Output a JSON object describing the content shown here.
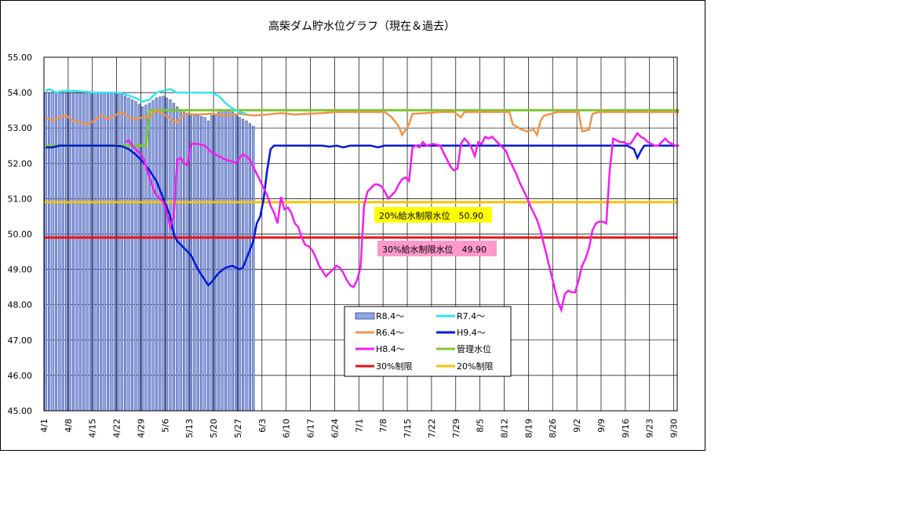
{
  "chart_data": {
    "type": "line",
    "title": "高柴ダム貯水位グラフ（現在＆過去）",
    "ylim": [
      45.0,
      55.0
    ],
    "y_ticks": [
      "45.00",
      "46.00",
      "47.00",
      "48.00",
      "49.00",
      "50.00",
      "51.00",
      "52.00",
      "53.00",
      "54.00",
      "55.00"
    ],
    "x_ticks": [
      "4/1",
      "4/8",
      "4/15",
      "4/22",
      "4/29",
      "5/6",
      "5/13",
      "5/20",
      "5/27",
      "6/3",
      "6/10",
      "6/17",
      "6/24",
      "7/1",
      "7/8",
      "7/15",
      "7/22",
      "7/29",
      "8/5",
      "8/12",
      "8/19",
      "8/26",
      "9/2",
      "9/9",
      "9/16",
      "9/23",
      "9/30"
    ],
    "day_count": 183,
    "grid": true,
    "legend_position": "bottom-center",
    "legend": [
      {
        "label": "R8.4～",
        "color": "#8ea5e8",
        "kind": "bar"
      },
      {
        "label": "R7.4～",
        "color": "#33e5ef",
        "kind": "line"
      },
      {
        "label": "R6.4～",
        "color": "#f0944a",
        "kind": "line"
      },
      {
        "label": "H9.4～",
        "color": "#0018d8",
        "kind": "line"
      },
      {
        "label": "H8.4～",
        "color": "#f31df0",
        "kind": "line"
      },
      {
        "label": "管理水位",
        "color": "#7dc830",
        "kind": "line"
      },
      {
        "label": "30%制限",
        "color": "#ee1010",
        "kind": "line"
      },
      {
        "label": "20%制限",
        "color": "#f4c20c",
        "kind": "line"
      }
    ],
    "annotations": [
      {
        "text": "20%給水制限水位　50.90",
        "bg": "#ffff00",
        "y": 50.9
      },
      {
        "text": "30%給水制限水位　49.90",
        "bg": "#ff99cc",
        "y": 49.9
      }
    ],
    "limits": {
      "limit30": 49.9,
      "limit20": 50.9
    },
    "series_points": {
      "bars_R8": [
        [
          0,
          54.0
        ],
        [
          18,
          53.98
        ],
        [
          22,
          53.95
        ],
        [
          24,
          53.85
        ],
        [
          26,
          53.75
        ],
        [
          28,
          53.6
        ],
        [
          30,
          53.7
        ],
        [
          32,
          53.85
        ],
        [
          34,
          53.9
        ],
        [
          36,
          53.8
        ],
        [
          38,
          53.6
        ],
        [
          40,
          53.45
        ],
        [
          42,
          53.4
        ],
        [
          44,
          53.35
        ],
        [
          46,
          53.3
        ],
        [
          47,
          53.2
        ],
        [
          48,
          53.35
        ],
        [
          50,
          53.45
        ],
        [
          52,
          53.5
        ],
        [
          54,
          53.45
        ],
        [
          56,
          53.3
        ],
        [
          58,
          53.2
        ],
        [
          60,
          53.05
        ]
      ],
      "R7": [
        [
          0,
          54.05
        ],
        [
          1,
          54.1
        ],
        [
          3,
          54.0
        ],
        [
          5,
          54.05
        ],
        [
          8,
          54.05
        ],
        [
          12,
          54.02
        ],
        [
          14,
          54.0
        ],
        [
          18,
          54.0
        ],
        [
          20,
          54.0
        ],
        [
          22,
          53.98
        ],
        [
          24,
          53.92
        ],
        [
          26,
          53.85
        ],
        [
          28,
          53.75
        ],
        [
          30,
          53.8
        ],
        [
          32,
          54.0
        ],
        [
          34,
          54.05
        ],
        [
          36,
          54.1
        ],
        [
          38,
          54.0
        ],
        [
          40,
          54.0
        ],
        [
          44,
          54.0
        ],
        [
          48,
          54.0
        ],
        [
          50,
          53.9
        ],
        [
          52,
          53.7
        ],
        [
          54,
          53.55
        ],
        [
          56,
          53.45
        ],
        [
          58,
          53.4
        ]
      ],
      "R6": [
        [
          0,
          53.3
        ],
        [
          2,
          53.2
        ],
        [
          4,
          53.3
        ],
        [
          6,
          53.35
        ],
        [
          8,
          53.2
        ],
        [
          10,
          53.15
        ],
        [
          12,
          53.1
        ],
        [
          14,
          53.2
        ],
        [
          16,
          53.35
        ],
        [
          18,
          53.25
        ],
        [
          20,
          53.35
        ],
        [
          22,
          53.45
        ],
        [
          24,
          53.3
        ],
        [
          26,
          53.25
        ],
        [
          28,
          53.3
        ],
        [
          30,
          53.3
        ],
        [
          32,
          53.5
        ],
        [
          34,
          53.4
        ],
        [
          36,
          53.25
        ],
        [
          38,
          53.15
        ],
        [
          40,
          53.4
        ],
        [
          44,
          53.38
        ],
        [
          48,
          53.4
        ],
        [
          52,
          53.35
        ],
        [
          56,
          53.4
        ],
        [
          60,
          53.35
        ],
        [
          64,
          53.38
        ],
        [
          68,
          53.42
        ],
        [
          72,
          53.38
        ],
        [
          76,
          53.4
        ],
        [
          80,
          53.42
        ],
        [
          84,
          53.45
        ],
        [
          88,
          53.45
        ],
        [
          92,
          53.45
        ],
        [
          96,
          53.45
        ],
        [
          98,
          53.45
        ],
        [
          100,
          53.3
        ],
        [
          102,
          53.05
        ],
        [
          103,
          52.8
        ],
        [
          105,
          53.1
        ],
        [
          106,
          53.4
        ],
        [
          110,
          53.42
        ],
        [
          114,
          53.45
        ],
        [
          118,
          53.45
        ],
        [
          120,
          53.3
        ],
        [
          121,
          53.45
        ],
        [
          124,
          53.45
        ],
        [
          128,
          53.45
        ],
        [
          132,
          53.45
        ],
        [
          134,
          53.45
        ],
        [
          135,
          53.1
        ],
        [
          137,
          52.98
        ],
        [
          139,
          52.9
        ],
        [
          141,
          52.95
        ],
        [
          142,
          52.8
        ],
        [
          143,
          53.2
        ],
        [
          144,
          53.35
        ],
        [
          148,
          53.45
        ],
        [
          152,
          53.45
        ],
        [
          154,
          53.45
        ],
        [
          155,
          52.9
        ],
        [
          157,
          52.95
        ],
        [
          158,
          53.4
        ],
        [
          160,
          53.45
        ],
        [
          164,
          53.45
        ],
        [
          168,
          53.45
        ],
        [
          172,
          53.45
        ],
        [
          176,
          53.45
        ],
        [
          180,
          53.45
        ],
        [
          183,
          53.45
        ]
      ],
      "H9": [
        [
          0,
          52.45
        ],
        [
          2,
          52.45
        ],
        [
          4,
          52.5
        ],
        [
          8,
          52.5
        ],
        [
          12,
          52.5
        ],
        [
          16,
          52.5
        ],
        [
          20,
          52.5
        ],
        [
          22,
          52.48
        ],
        [
          24,
          52.4
        ],
        [
          26,
          52.25
        ],
        [
          28,
          52.05
        ],
        [
          30,
          51.8
        ],
        [
          32,
          51.5
        ],
        [
          34,
          51.0
        ],
        [
          36,
          50.5
        ],
        [
          37,
          50.0
        ],
        [
          38,
          49.8
        ],
        [
          40,
          49.6
        ],
        [
          42,
          49.4
        ],
        [
          44,
          49.0
        ],
        [
          46,
          48.7
        ],
        [
          47,
          48.55
        ],
        [
          48,
          48.65
        ],
        [
          50,
          48.9
        ],
        [
          52,
          49.05
        ],
        [
          54,
          49.1
        ],
        [
          56,
          49.0
        ],
        [
          57,
          49.05
        ],
        [
          58,
          49.3
        ],
        [
          60,
          49.8
        ],
        [
          61,
          50.3
        ],
        [
          62,
          50.5
        ],
        [
          63,
          51.0
        ],
        [
          64,
          51.8
        ],
        [
          65,
          52.4
        ],
        [
          66,
          52.5
        ],
        [
          70,
          52.5
        ],
        [
          76,
          52.5
        ],
        [
          80,
          52.5
        ],
        [
          82,
          52.47
        ],
        [
          84,
          52.5
        ],
        [
          86,
          52.45
        ],
        [
          88,
          52.5
        ],
        [
          94,
          52.5
        ],
        [
          96,
          52.45
        ],
        [
          98,
          52.5
        ],
        [
          110,
          52.5
        ],
        [
          120,
          52.5
        ],
        [
          130,
          52.5
        ],
        [
          140,
          52.5
        ],
        [
          150,
          52.5
        ],
        [
          160,
          52.5
        ],
        [
          168,
          52.5
        ],
        [
          170,
          52.4
        ],
        [
          171,
          52.15
        ],
        [
          172,
          52.35
        ],
        [
          173,
          52.5
        ],
        [
          176,
          52.5
        ],
        [
          183,
          52.5
        ]
      ],
      "H8": [
        [
          23,
          52.6
        ],
        [
          24,
          52.65
        ],
        [
          25,
          52.5
        ],
        [
          26,
          52.4
        ],
        [
          27,
          52.3
        ],
        [
          28,
          52.2
        ],
        [
          29,
          51.9
        ],
        [
          30,
          51.6
        ],
        [
          31,
          51.3
        ],
        [
          32,
          51.1
        ],
        [
          33,
          51.0
        ],
        [
          34,
          50.9
        ],
        [
          35,
          50.6
        ],
        [
          36,
          50.2
        ],
        [
          37,
          50.5
        ],
        [
          38,
          52.1
        ],
        [
          39,
          52.15
        ],
        [
          40,
          52.0
        ],
        [
          41,
          51.95
        ],
        [
          42,
          52.55
        ],
        [
          44,
          52.55
        ],
        [
          46,
          52.5
        ],
        [
          48,
          52.3
        ],
        [
          50,
          52.2
        ],
        [
          52,
          52.1
        ],
        [
          54,
          52.05
        ],
        [
          55,
          52.0
        ],
        [
          56,
          52.15
        ],
        [
          57,
          52.25
        ],
        [
          58,
          52.2
        ],
        [
          59,
          52.1
        ],
        [
          60,
          51.9
        ],
        [
          61,
          51.7
        ],
        [
          62,
          51.5
        ],
        [
          63,
          51.3
        ],
        [
          64,
          51.1
        ],
        [
          65,
          50.8
        ],
        [
          66,
          50.6
        ],
        [
          67,
          50.3
        ],
        [
          68,
          51.05
        ],
        [
          69,
          50.7
        ],
        [
          70,
          50.75
        ],
        [
          71,
          50.6
        ],
        [
          72,
          50.3
        ],
        [
          73,
          50.2
        ],
        [
          74,
          49.9
        ],
        [
          75,
          49.7
        ],
        [
          76,
          49.65
        ],
        [
          77,
          49.55
        ],
        [
          78,
          49.35
        ],
        [
          79,
          49.1
        ],
        [
          80,
          48.95
        ],
        [
          81,
          48.8
        ],
        [
          82,
          48.9
        ],
        [
          83,
          49.0
        ],
        [
          84,
          49.1
        ],
        [
          85,
          49.05
        ],
        [
          86,
          48.9
        ],
        [
          87,
          48.7
        ],
        [
          88,
          48.55
        ],
        [
          89,
          48.5
        ],
        [
          90,
          48.7
        ],
        [
          91,
          49.05
        ],
        [
          92,
          50.8
        ],
        [
          93,
          51.2
        ],
        [
          94,
          51.3
        ],
        [
          95,
          51.4
        ],
        [
          96,
          51.4
        ],
        [
          97,
          51.35
        ],
        [
          98,
          51.2
        ],
        [
          99,
          51.0
        ],
        [
          100,
          51.1
        ],
        [
          101,
          51.2
        ],
        [
          102,
          51.4
        ],
        [
          103,
          51.55
        ],
        [
          104,
          51.6
        ],
        [
          105,
          51.5
        ],
        [
          106,
          52.45
        ],
        [
          107,
          52.5
        ],
        [
          108,
          52.45
        ],
        [
          109,
          52.6
        ],
        [
          110,
          52.5
        ],
        [
          112,
          52.55
        ],
        [
          114,
          52.5
        ],
        [
          115,
          52.3
        ],
        [
          116,
          52.1
        ],
        [
          117,
          51.9
        ],
        [
          118,
          51.8
        ],
        [
          119,
          51.85
        ],
        [
          120,
          52.55
        ],
        [
          121,
          52.7
        ],
        [
          122,
          52.6
        ],
        [
          123,
          52.45
        ],
        [
          124,
          52.2
        ],
        [
          125,
          52.6
        ],
        [
          126,
          52.55
        ],
        [
          127,
          52.75
        ],
        [
          128,
          52.7
        ],
        [
          129,
          52.75
        ],
        [
          130,
          52.65
        ],
        [
          131,
          52.55
        ],
        [
          132,
          52.45
        ],
        [
          133,
          52.35
        ],
        [
          134,
          52.1
        ],
        [
          135,
          51.9
        ],
        [
          136,
          51.7
        ],
        [
          137,
          51.45
        ],
        [
          138,
          51.25
        ],
        [
          139,
          51.05
        ],
        [
          140,
          50.8
        ],
        [
          141,
          50.6
        ],
        [
          142,
          50.4
        ],
        [
          143,
          50.1
        ],
        [
          144,
          49.7
        ],
        [
          145,
          49.3
        ],
        [
          146,
          48.9
        ],
        [
          147,
          48.5
        ],
        [
          148,
          48.1
        ],
        [
          149,
          47.85
        ],
        [
          150,
          48.3
        ],
        [
          151,
          48.4
        ],
        [
          152,
          48.35
        ],
        [
          153,
          48.35
        ],
        [
          154,
          48.7
        ],
        [
          155,
          49.1
        ],
        [
          156,
          49.3
        ],
        [
          157,
          49.6
        ],
        [
          158,
          50.1
        ],
        [
          159,
          50.3
        ],
        [
          160,
          50.35
        ],
        [
          161,
          50.35
        ],
        [
          162,
          50.3
        ],
        [
          163,
          51.8
        ],
        [
          164,
          52.7
        ],
        [
          165,
          52.65
        ],
        [
          166,
          52.6
        ],
        [
          167,
          52.6
        ],
        [
          168,
          52.55
        ],
        [
          169,
          52.55
        ],
        [
          170,
          52.7
        ],
        [
          171,
          52.85
        ],
        [
          172,
          52.75
        ],
        [
          173,
          52.7
        ],
        [
          174,
          52.6
        ],
        [
          175,
          52.55
        ],
        [
          176,
          52.5
        ],
        [
          177,
          52.5
        ],
        [
          178,
          52.6
        ],
        [
          179,
          52.7
        ],
        [
          180,
          52.6
        ],
        [
          181,
          52.55
        ],
        [
          182,
          52.5
        ],
        [
          183,
          52.5
        ]
      ],
      "kanri": [
        [
          0,
          52.5
        ],
        [
          28,
          52.5
        ],
        [
          29,
          52.5
        ],
        [
          30,
          53.5
        ],
        [
          183,
          53.5
        ]
      ]
    }
  }
}
